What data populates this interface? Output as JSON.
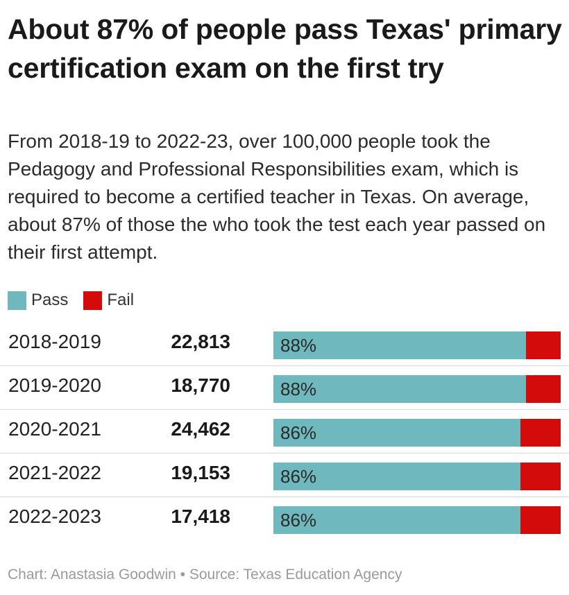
{
  "title": "About 87% of people pass Texas' primary certification exam on the first try",
  "subtitle": "From 2018-19 to 2022-23, over 100,000 people took the Pedagogy and Professional Responsibilities exam, which is required to become a certified teacher in Texas. On average, about 87% of those the who took the test each year passed on their first attempt.",
  "legend": [
    {
      "label": "Pass",
      "color": "#6fb8be"
    },
    {
      "label": "Fail",
      "color": "#d40b0b"
    }
  ],
  "footer": "Chart: Anastasia Goodwin • Source: Texas Education Agency",
  "chart_data": {
    "type": "bar",
    "orientation": "horizontal-stacked-100",
    "categories": [
      "2018-2019",
      "2019-2020",
      "2020-2021",
      "2021-2022",
      "2022-2023"
    ],
    "test_takers": [
      "22,813",
      "18,770",
      "24,462",
      "19,153",
      "17,418"
    ],
    "series": [
      {
        "name": "Pass",
        "values": [
          88,
          88,
          86,
          86,
          86
        ]
      },
      {
        "name": "Fail",
        "values": [
          12,
          12,
          14,
          14,
          14
        ]
      }
    ],
    "pass_labels": [
      "88%",
      "88%",
      "86%",
      "86%",
      "86%"
    ],
    "xlim": [
      0,
      100
    ]
  }
}
